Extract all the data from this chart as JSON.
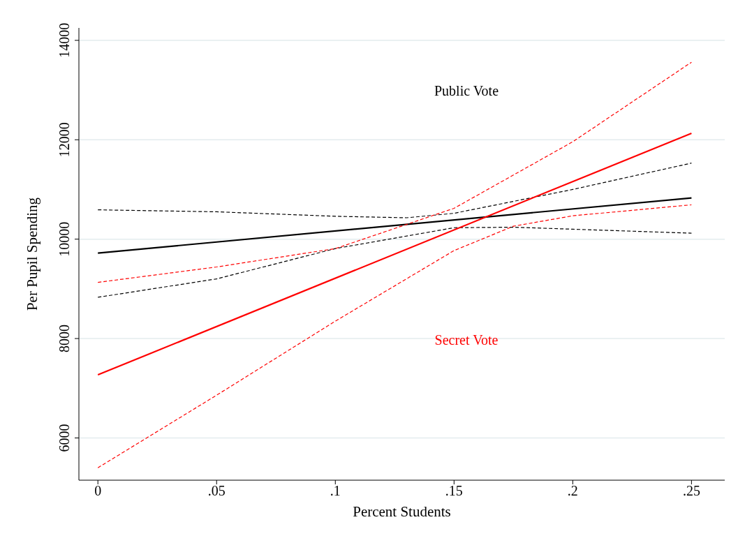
{
  "chart_data": {
    "type": "line",
    "xlabel": "Percent Students",
    "ylabel": "Per Pupil Spending",
    "xlim": [
      -0.008,
      0.264
    ],
    "ylim": [
      5150,
      14250
    ],
    "xticks": [
      0,
      {
        "value": 0.05,
        "label": ".05"
      },
      {
        "value": 0.1,
        "label": ".1"
      },
      {
        "value": 0.15,
        "label": ".15"
      },
      {
        "value": 0.2,
        "label": ".2"
      },
      {
        "value": 0.25,
        "label": ".25"
      }
    ],
    "yticks": [
      6000,
      8000,
      10000,
      12000,
      14000
    ],
    "grid": "y",
    "marker": "none",
    "series": [
      {
        "name": "Public Vote",
        "color": "#000000",
        "line_style": "solid",
        "x": [
          0,
          0.25
        ],
        "values": [
          9720,
          10830
        ]
      },
      {
        "color": "#000000",
        "line_style": "dashed",
        "x": [
          0,
          0.05,
          0.1,
          0.13,
          0.15,
          0.2,
          0.25
        ],
        "values": [
          10590,
          10550,
          10460,
          10430,
          10520,
          11000,
          11530
        ]
      },
      {
        "color": "#000000",
        "line_style": "dashed",
        "x": [
          0,
          0.05,
          0.1,
          0.15,
          0.175,
          0.2,
          0.25
        ],
        "values": [
          8830,
          9200,
          9810,
          10230,
          10240,
          10200,
          10120
        ]
      },
      {
        "name": "Secret Vote",
        "color": "#ff0000",
        "line_style": "solid",
        "x": [
          0,
          0.25
        ],
        "values": [
          7270,
          12130
        ]
      },
      {
        "color": "#ff0000",
        "line_style": "dashed",
        "x": [
          0,
          0.05,
          0.1,
          0.15,
          0.2,
          0.25
        ],
        "values": [
          9130,
          9440,
          9810,
          10620,
          11960,
          13560
        ]
      },
      {
        "color": "#ff0000",
        "line_style": "dashed",
        "x": [
          0,
          0.05,
          0.1,
          0.15,
          0.175,
          0.2,
          0.25
        ],
        "values": [
          5400,
          6860,
          8350,
          9770,
          10260,
          10470,
          10690
        ]
      }
    ]
  }
}
